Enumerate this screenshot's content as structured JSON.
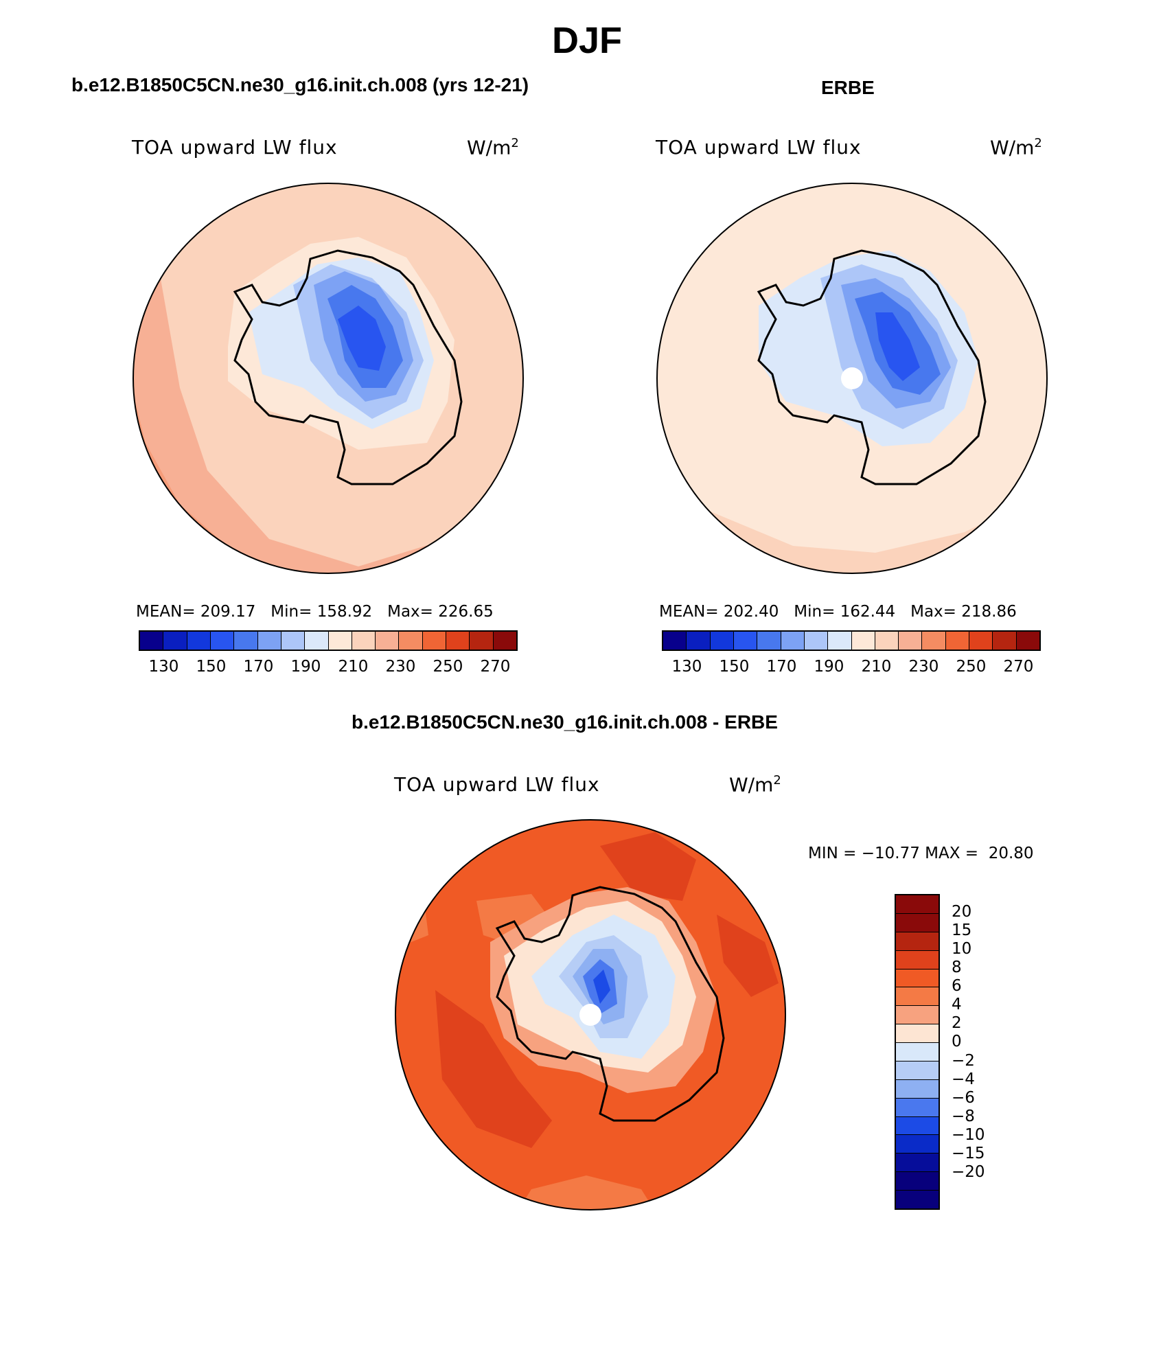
{
  "figure": {
    "title": "DJF"
  },
  "colors": {
    "abs_levels": [
      "#08008c",
      "#0a1fc0",
      "#1238dc",
      "#2855f0",
      "#4878ee",
      "#7da2f4",
      "#adc6f8",
      "#dbe8fa",
      "#fde8d8",
      "#fbd3bc",
      "#f7b095",
      "#f48c62",
      "#f06535",
      "#e0421c",
      "#b52510",
      "#8a0a0a"
    ],
    "diff_levels": [
      "#8a0a0a",
      "#b52510",
      "#e0421c",
      "#f05a25",
      "#f47a45",
      "#f7a27f",
      "#fde5d3",
      "#d9e8fa",
      "#b6cdf6",
      "#8eb0f2",
      "#4a78ee",
      "#1c4be6",
      "#0a2bc8",
      "#060d9a",
      "#08007c"
    ]
  },
  "panels": [
    {
      "id": "model",
      "case_title": "b.e12.B1850C5CN.ne30_g16.init.ch.008 (yrs 12-21)",
      "variable": "TOA upward LW flux",
      "units_base": "W/m",
      "units_exp": "2",
      "stats": "MEAN= 209.17   Min= 158.92   Max= 226.65",
      "colorbar_ticks": [
        "130",
        "150",
        "170",
        "190",
        "210",
        "230",
        "250",
        "270"
      ]
    },
    {
      "id": "obs",
      "case_title": "ERBE",
      "variable": "TOA upward LW flux",
      "units_base": "W/m",
      "units_exp": "2",
      "stats": "MEAN= 202.40   Min= 162.44   Max= 218.86",
      "colorbar_ticks": [
        "130",
        "150",
        "170",
        "190",
        "210",
        "230",
        "250",
        "270"
      ]
    },
    {
      "id": "diff",
      "case_title": "b.e12.B1850C5CN.ne30_g16.init.ch.008 - ERBE",
      "variable": "TOA upward LW flux",
      "units_base": "W/m",
      "units_exp": "2",
      "stats": "MIN = −10.77 MAX =  20.80",
      "colorbar_ticks": [
        "20",
        "15",
        "10",
        "8",
        "6",
        "4",
        "2",
        "0",
        "−2",
        "−4",
        "−6",
        "−8",
        "−10",
        "−15",
        "−20"
      ]
    }
  ]
}
